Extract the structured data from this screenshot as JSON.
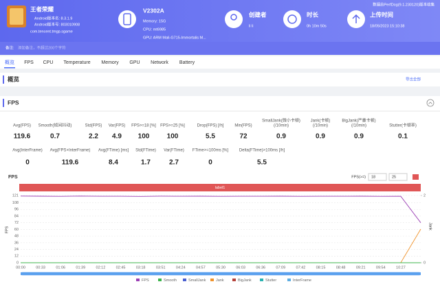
{
  "header": {
    "collector_note": "数据由PerfDog(9.1.230120)版本收集",
    "app": {
      "name": "王者荣耀",
      "version_name": "Android版本名: 8.3.1.9",
      "version_code": "Android版本号: 803010908",
      "package": "com.tencent.tmgp.sgame"
    },
    "device": {
      "name": "V2302A",
      "memory": "Memory: 15G",
      "cpu": "CPU: mt6985",
      "gpu": "GPU: ARM Mali-G715-Immortalis M..."
    },
    "creator": {
      "label": "创建者",
      "value": "li li"
    },
    "duration": {
      "label": "时长",
      "value": "0h 10m 50s"
    },
    "upload": {
      "label": "上传时间",
      "value": "18/05/2023 15:10:38"
    },
    "remark_label": "备注:",
    "remark_placeholder": "添加备注，不超过200个字符"
  },
  "tabs": [
    "概览",
    "FPS",
    "CPU",
    "Temperature",
    "Memory",
    "GPU",
    "Network",
    "Battery"
  ],
  "overview": {
    "title": "概览",
    "export": "导出全部"
  },
  "fps_section": {
    "title": "FPS",
    "stats_row1": [
      {
        "label": [
          "Avg(FPS)"
        ],
        "value": 119.6
      },
      {
        "label": [
          "Smooth(帧间抖动)"
        ],
        "value": 0.7
      },
      {
        "label": [
          "Std(FPS)"
        ],
        "value": 2.2
      },
      {
        "label": [
          "Var(FPS)"
        ],
        "value": 4.9
      },
      {
        "label": [
          "FPS>=18 [%]"
        ],
        "value": 100
      },
      {
        "label": [
          "FPS>=25 [%]"
        ],
        "value": 100
      },
      {
        "label": [
          "Drop(FPS) [/h]"
        ],
        "value": 5.5
      },
      {
        "label": [
          "Min(FPS)"
        ],
        "value": 72
      },
      {
        "label": [
          "SmallJank(微小卡顿)",
          "(/10min)"
        ],
        "value": 0.9
      },
      {
        "label": [
          "Jank(卡顿)",
          "(/10min)"
        ],
        "value": 0.9
      },
      {
        "label": [
          "BigJank(严重卡顿)",
          "(/10min)"
        ],
        "value": 0.9
      },
      {
        "label": [
          "Stutter(卡顿率)"
        ],
        "value": 0.1
      }
    ],
    "stats_row2": [
      {
        "label": [
          "Avg(InterFrame)"
        ],
        "value": 0
      },
      {
        "label": [
          "Avg(FPS+InterFrame)"
        ],
        "value": 119.6
      },
      {
        "label": [
          "Avg(FTime) [ms]"
        ],
        "value": 8.4
      },
      {
        "label": [
          "Std(FTime)"
        ],
        "value": 1.7
      },
      {
        "label": [
          "Var(FTime)"
        ],
        "value": 2.7
      },
      {
        "label": [
          "FTime>=100ms [%]"
        ],
        "value": 0
      },
      {
        "label": [
          "Delta(FTime)>100ms [/h]"
        ],
        "value": 5.5
      }
    ]
  },
  "chart": {
    "type": "line",
    "title": "FPS",
    "threshold_label": "FPS(>=)",
    "threshold_low": 18,
    "threshold_high": 25,
    "band_label": "label1",
    "y_label": "FPS",
    "y2_label": "Jank",
    "categories": [
      "00:00",
      "00:33",
      "01:06",
      "01:39",
      "02:12",
      "02:45",
      "03:18",
      "03:51",
      "04:24",
      "04:57",
      "05:30",
      "06:03",
      "06:36",
      "07:09",
      "07:42",
      "08:15",
      "08:48",
      "09:21",
      "09:54",
      "10:27",
      null
    ],
    "ylim": [
      0,
      121
    ],
    "yticks": [
      0,
      12,
      24,
      36,
      48,
      60,
      72,
      84,
      96,
      108,
      121
    ],
    "y2lim": [
      0,
      2
    ],
    "y2ticks": [
      0,
      2
    ],
    "grid": true,
    "series": [
      {
        "name": "FPS",
        "color": "#9b3fb5",
        "values": [
          120,
          119.8,
          119.5,
          120,
          119.6,
          119.7,
          119.4,
          119.9,
          119.6,
          119.8,
          119.5,
          119.7,
          119.6,
          119.8,
          119.5,
          119.7,
          119.6,
          119.8,
          119.5,
          119.7,
          72
        ]
      },
      {
        "name": "Smooth",
        "color": "#3cb44b",
        "values": [
          0,
          0,
          0,
          0,
          0,
          0,
          0,
          0,
          0,
          0,
          0,
          0,
          0,
          0,
          0,
          0,
          0,
          0,
          0,
          0,
          0
        ]
      },
      {
        "name": "SmallJank",
        "color": "#4a5fd0",
        "values": [
          0,
          0,
          0,
          0,
          0,
          0,
          0,
          0,
          0,
          0,
          0,
          0,
          0,
          0,
          0,
          0,
          0,
          0,
          0,
          0,
          0
        ]
      },
      {
        "name": "Jank",
        "color": "#f0932b",
        "axis": "y2",
        "values": [
          0,
          0,
          0,
          0,
          0,
          0,
          0,
          0,
          0,
          0,
          0,
          0,
          0,
          0,
          0,
          0,
          0,
          0,
          0,
          0,
          1
        ]
      },
      {
        "name": "BigJank",
        "color": "#b5413a",
        "values": [
          0,
          0,
          0,
          0,
          0,
          0,
          0,
          0,
          0,
          0,
          0,
          0,
          0,
          0,
          0,
          0,
          0,
          0,
          0,
          0,
          0
        ]
      },
      {
        "name": "Stutter",
        "color": "#2bb3b1",
        "values": [
          0,
          0,
          0,
          0,
          0,
          0,
          0,
          0,
          0,
          0,
          0,
          0,
          0,
          0,
          0,
          0,
          0,
          0,
          0,
          0,
          0
        ]
      },
      {
        "name": "InterFrame",
        "color": "#5dade2",
        "values": [
          0,
          0,
          0,
          0,
          0,
          0,
          0,
          0,
          0,
          0,
          0,
          0,
          0,
          0,
          0,
          0,
          0,
          0,
          0,
          0,
          0
        ]
      }
    ]
  }
}
